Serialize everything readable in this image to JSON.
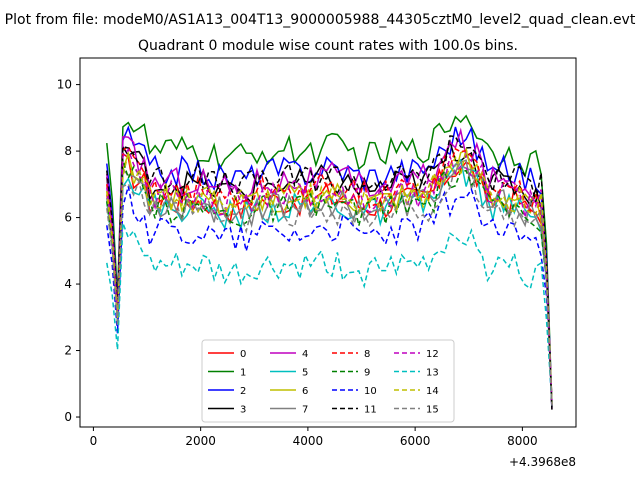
{
  "figure": {
    "suptitle": "Plot from file: modeM0/AS1A13_004T13_9000005988_44305cztM0_level2_quad_clean.evt"
  },
  "chart_data": {
    "type": "line",
    "title": "Quadrant 0 module wise count rates with 100.0s bins.",
    "xlabel": "",
    "ylabel": "",
    "x_offset_label": "+4.3968e8",
    "xlim": [
      -250,
      9000
    ],
    "ylim": [
      -0.3,
      10.8
    ],
    "x_ticks": [
      0,
      2000,
      4000,
      6000,
      8000
    ],
    "x_tick_labels": [
      "0",
      "2000",
      "4000",
      "6000",
      "8000"
    ],
    "y_ticks": [
      0,
      2,
      4,
      6,
      8,
      10
    ],
    "y_tick_labels": [
      "0",
      "2",
      "4",
      "6",
      "8",
      "10"
    ],
    "grid": false,
    "legend_position": "lower-center",
    "legend_columns": 4,
    "x_start": 250,
    "x_step": 100,
    "x_end": 8550,
    "series": [
      {
        "name": "0",
        "color": "#ff0000",
        "style": "solid",
        "base": 6.5
      },
      {
        "name": "1",
        "color": "#008000",
        "style": "solid",
        "base": 8.0
      },
      {
        "name": "2",
        "color": "#0000ff",
        "style": "solid",
        "base": 7.4
      },
      {
        "name": "3",
        "color": "#000000",
        "style": "solid",
        "base": 7.0
      },
      {
        "name": "4",
        "color": "#bf00bf",
        "style": "solid",
        "base": 7.1
      },
      {
        "name": "5",
        "color": "#00bfbf",
        "style": "solid",
        "base": 6.3
      },
      {
        "name": "6",
        "color": "#bfbf00",
        "style": "solid",
        "base": 6.6
      },
      {
        "name": "7",
        "color": "#808080",
        "style": "solid",
        "base": 6.4
      },
      {
        "name": "8",
        "color": "#ff0000",
        "style": "dashed",
        "base": 6.8
      },
      {
        "name": "9",
        "color": "#008000",
        "style": "dashed",
        "base": 6.3
      },
      {
        "name": "10",
        "color": "#0000ff",
        "style": "dashed",
        "base": 5.6
      },
      {
        "name": "11",
        "color": "#000000",
        "style": "dashed",
        "base": 7.2
      },
      {
        "name": "12",
        "color": "#bf00bf",
        "style": "dashed",
        "base": 6.7
      },
      {
        "name": "13",
        "color": "#00bfbf",
        "style": "dashed",
        "base": 4.5
      },
      {
        "name": "14",
        "color": "#bfbf00",
        "style": "dashed",
        "base": 6.6
      },
      {
        "name": "15",
        "color": "#808080",
        "style": "dashed",
        "base": 6.1
      }
    ]
  }
}
